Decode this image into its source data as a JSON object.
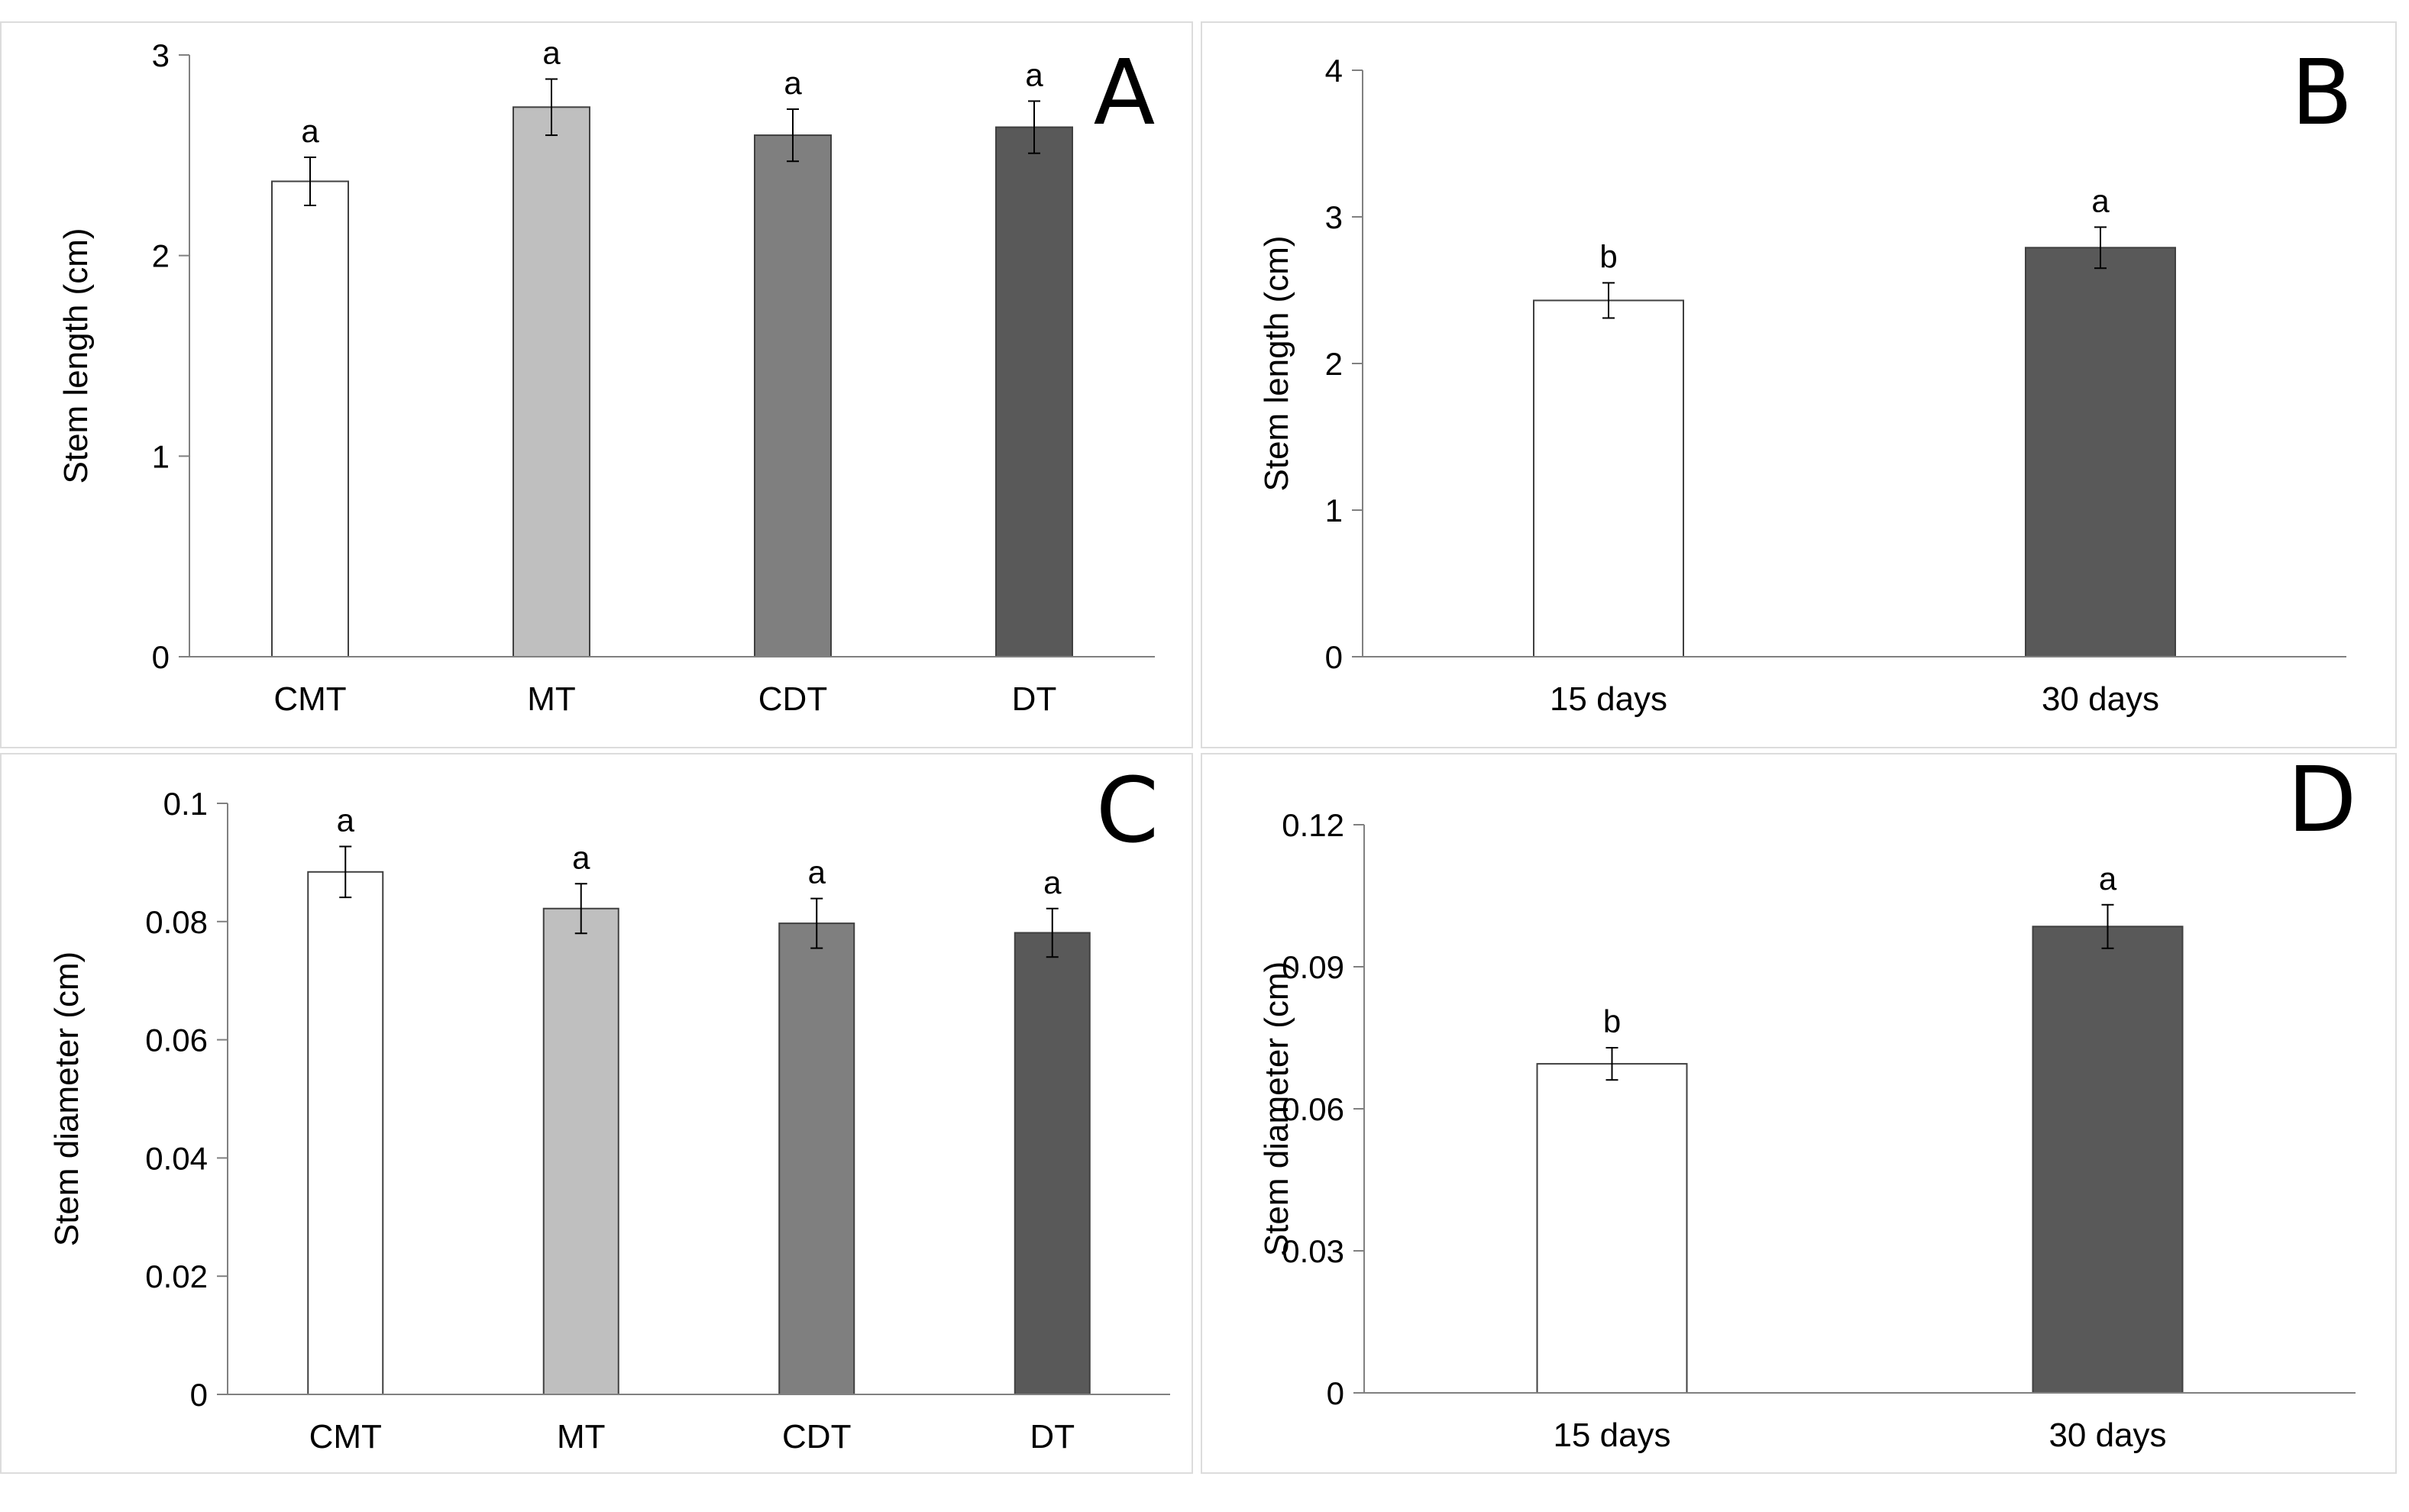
{
  "chart_data": [
    {
      "panel": "A",
      "type": "bar",
      "title": "",
      "xlabel": "",
      "ylabel": "Stem length  (cm)",
      "ylim": [
        0,
        3
      ],
      "yticks": [
        0,
        1,
        2,
        3
      ],
      "ytick_labels": [
        "0",
        "1",
        "2",
        "3"
      ],
      "grid": false,
      "categories": [
        "CMT",
        "MT",
        "CDT",
        "DT"
      ],
      "values": [
        2.37,
        2.74,
        2.6,
        2.64
      ],
      "errors": [
        0.12,
        0.14,
        0.13,
        0.13
      ],
      "significance": [
        "a",
        "a",
        "a",
        "a"
      ],
      "colors": [
        "#ffffff",
        "#bfbfbf",
        "#7f7f7f",
        "#595959"
      ]
    },
    {
      "panel": "B",
      "type": "bar",
      "title": "",
      "xlabel": "",
      "ylabel": "Stem length  (cm)",
      "ylim": [
        0,
        4
      ],
      "yticks": [
        0,
        1,
        2,
        3,
        4
      ],
      "ytick_labels": [
        "0",
        "1",
        "2",
        "3",
        "4"
      ],
      "grid": false,
      "categories": [
        "15 days",
        "30 days"
      ],
      "values": [
        2.43,
        2.79
      ],
      "errors": [
        0.12,
        0.14
      ],
      "significance": [
        "b",
        "a"
      ],
      "colors": [
        "#ffffff",
        "#595959"
      ]
    },
    {
      "panel": "C",
      "type": "bar",
      "title": "",
      "xlabel": "",
      "ylabel": "Stem diameter (cm)",
      "ylim": [
        0,
        0.1
      ],
      "yticks": [
        0,
        0.02,
        0.04,
        0.06,
        0.08,
        0.1
      ],
      "ytick_labels": [
        "0",
        "0.02",
        "0.04",
        "0.06",
        "0.08",
        "0.1"
      ],
      "grid": false,
      "categories": [
        "CMT",
        "MT",
        "CDT",
        "DT"
      ],
      "values": [
        0.0884,
        0.0822,
        0.0797,
        0.0781
      ],
      "errors": [
        0.0043,
        0.0042,
        0.0042,
        0.0041
      ],
      "significance": [
        "a",
        "a",
        "a",
        "a"
      ],
      "colors": [
        "#ffffff",
        "#bfbfbf",
        "#7f7f7f",
        "#595959"
      ]
    },
    {
      "panel": "D",
      "type": "bar",
      "title": "",
      "xlabel": "",
      "ylabel": "Stem diameter (cm)",
      "ylim": [
        0,
        0.12
      ],
      "yticks": [
        0,
        0.03,
        0.06,
        0.09,
        0.12
      ],
      "ytick_labels": [
        "0",
        "0.03",
        "0.06",
        "0.09",
        "0.12"
      ],
      "grid": false,
      "categories": [
        "15 days",
        "30 days"
      ],
      "values": [
        0.0695,
        0.0985
      ],
      "errors": [
        0.0034,
        0.0046
      ],
      "significance": [
        "b",
        "a"
      ],
      "colors": [
        "#ffffff",
        "#595959"
      ]
    }
  ]
}
